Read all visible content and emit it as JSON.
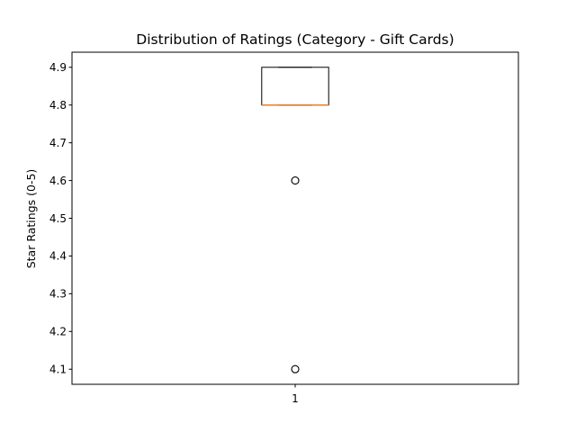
{
  "chart_data": {
    "type": "box",
    "title": "Distribution of Ratings (Category - Gift Cards)",
    "xlabel": "",
    "ylabel": "Star Ratings (0-5)",
    "ylim": [
      4.06,
      4.94
    ],
    "yticks": [
      4.1,
      4.2,
      4.3,
      4.4,
      4.5,
      4.6,
      4.7,
      4.8,
      4.9
    ],
    "ytick_labels": [
      "4.1",
      "4.2",
      "4.3",
      "4.4",
      "4.5",
      "4.6",
      "4.7",
      "4.8",
      "4.9"
    ],
    "categories": [
      "1"
    ],
    "boxes": [
      {
        "category": "1",
        "q1": 4.8,
        "median": 4.8,
        "q3": 4.9,
        "whisker_low": 4.8,
        "whisker_high": 4.9,
        "outliers": [
          4.6,
          4.1
        ]
      }
    ],
    "grid": false,
    "colors": {
      "box": "#000000",
      "median": "#ff7f0e",
      "outlier": "#000000"
    }
  }
}
